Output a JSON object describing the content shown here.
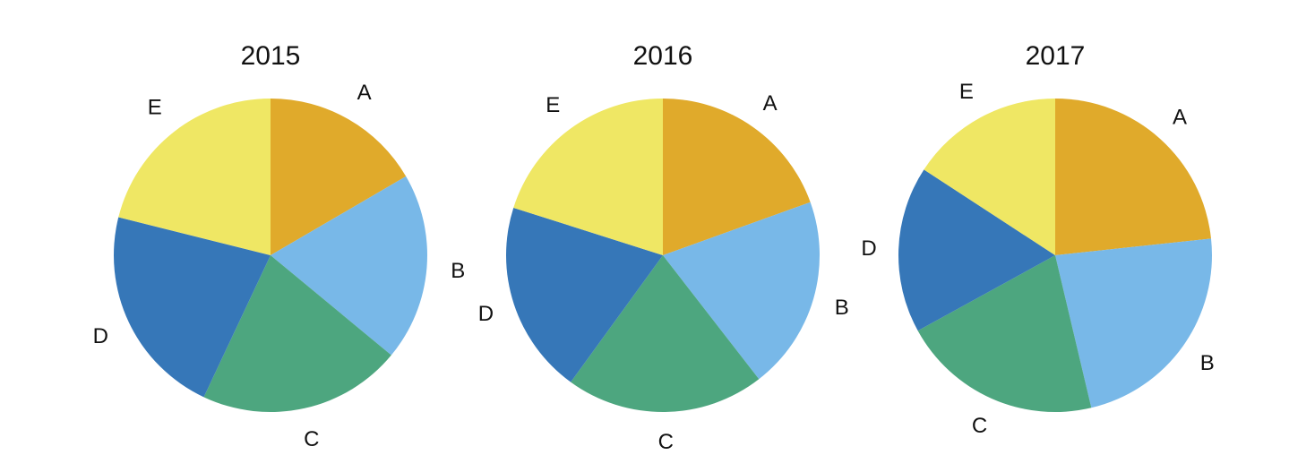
{
  "chart_data": [
    {
      "type": "pie",
      "title": "2015",
      "categories": [
        "A",
        "B",
        "C",
        "D",
        "E"
      ],
      "values": [
        16.6,
        19.4,
        21.0,
        21.9,
        21.1
      ],
      "start_angle": "12 o'clock",
      "direction": "clockwise"
    },
    {
      "type": "pie",
      "title": "2016",
      "categories": [
        "A",
        "B",
        "C",
        "D",
        "E"
      ],
      "values": [
        19.5,
        20.0,
        20.5,
        19.9,
        20.1
      ],
      "start_angle": "12 o'clock",
      "direction": "clockwise"
    },
    {
      "type": "pie",
      "title": "2017",
      "categories": [
        "A",
        "B",
        "C",
        "D",
        "E"
      ],
      "values": [
        23.3,
        23.0,
        20.7,
        17.2,
        15.8
      ],
      "start_angle": "12 o'clock",
      "direction": "clockwise"
    }
  ],
  "colors": {
    "A": "#e0aa2b",
    "B": "#78b8e8",
    "C": "#4da67f",
    "D": "#3677b8",
    "E": "#efe764"
  }
}
